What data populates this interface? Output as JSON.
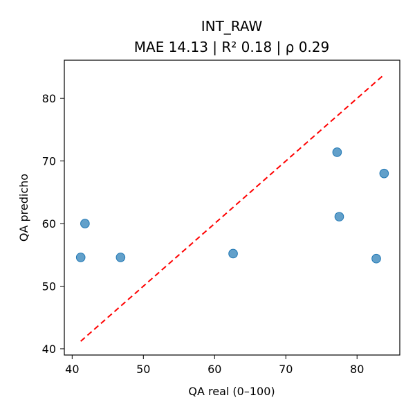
{
  "chart_data": {
    "type": "scatter",
    "title": "INT_RAW",
    "subtitle": "MAE 14.13 | R² 0.18 | ρ 0.29",
    "xlabel": "QA real (0–100)",
    "ylabel": "QA predicho",
    "xlim": [
      38.9,
      86.0
    ],
    "ylim": [
      39.0,
      86.1
    ],
    "xticks": [
      40,
      50,
      60,
      70,
      80
    ],
    "yticks": [
      40,
      50,
      60,
      70,
      80
    ],
    "grid": false,
    "series": [
      {
        "points": [
          {
            "x": 41.2,
            "y": 54.6
          },
          {
            "x": 41.8,
            "y": 60.0
          },
          {
            "x": 46.8,
            "y": 54.6
          },
          {
            "x": 62.6,
            "y": 55.2
          },
          {
            "x": 77.2,
            "y": 71.4
          },
          {
            "x": 77.5,
            "y": 61.1
          },
          {
            "x": 82.7,
            "y": 54.4
          },
          {
            "x": 83.8,
            "y": 68.0
          }
        ],
        "color": "#1f77b4"
      }
    ],
    "reference_line": {
      "from": {
        "x": 41.2,
        "y": 41.2
      },
      "to": {
        "x": 83.8,
        "y": 83.8
      },
      "style": "dashed",
      "color": "#ff0000"
    }
  }
}
